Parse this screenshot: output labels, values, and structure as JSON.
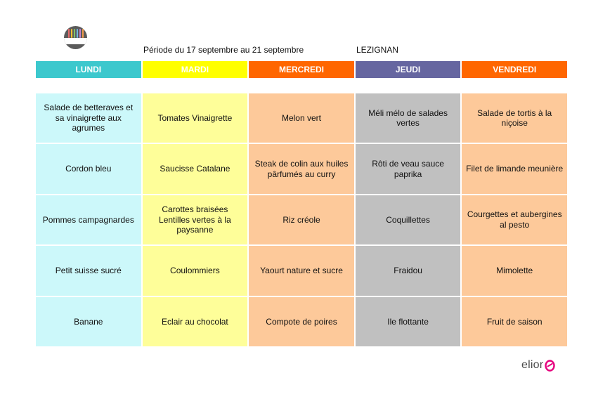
{
  "header": {
    "period": "Période du 17 septembre au 21 septembre",
    "town": "LEZIGNAN"
  },
  "colors": {
    "lundi_head": "#3cc8cd",
    "lundi_cell": "#ccf8fa",
    "mardi_head": "#ffff00",
    "mardi_cell": "#fefe99",
    "mercredi_head": "#ff6600",
    "mercredi_cell": "#fdc99a",
    "jeudi_head": "#6666a0",
    "jeudi_cell": "#c0c0c0",
    "vendredi_head": "#ff6600",
    "vendredi_cell": "#fdc99a",
    "brand_accent": "#e6007e"
  },
  "icons": {
    "logo": "circular-brand-logo",
    "brand_mark": "elior-e-mark"
  },
  "days": [
    {
      "label": "LUNDI",
      "items": [
        "Salade de betteraves et sa vinaigrette aux agrumes",
        "Cordon bleu",
        "Pommes campagnardes",
        "Petit suisse sucré",
        "Banane"
      ]
    },
    {
      "label": "MARDI",
      "items": [
        "Tomates Vinaigrette",
        "Saucisse Catalane",
        "Carottes braisées\nLentilles vertes à la paysanne",
        "Coulommiers",
        "Eclair au chocolat"
      ]
    },
    {
      "label": "MERCREDI",
      "items": [
        "Melon vert",
        "Steak de colin aux huiles pârfumés au curry",
        "Riz créole",
        "Yaourt nature et sucre",
        "Compote de poires"
      ]
    },
    {
      "label": "JEUDI",
      "items": [
        "Méli mélo de salades vertes",
        "Rôti de veau sauce paprika",
        "Coquillettes",
        "Fraidou",
        "Ile flottante"
      ]
    },
    {
      "label": "VENDREDI",
      "items": [
        "Salade de tortis à la niçoise",
        "Filet de limande meunière",
        "Courgettes et aubergines al pesto",
        "Mimolette",
        "Fruit de saison"
      ]
    }
  ],
  "brand": {
    "name": "elior"
  }
}
